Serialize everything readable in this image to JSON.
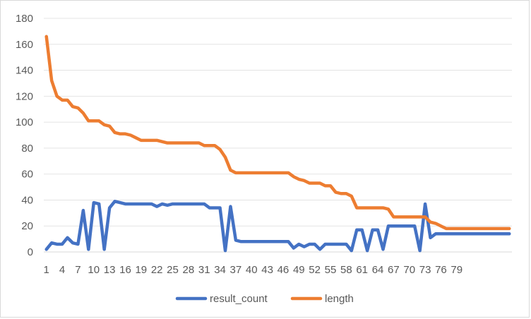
{
  "chart_data": {
    "type": "line",
    "title": "",
    "xlabel": "",
    "ylabel": "",
    "ylim": [
      0,
      180
    ],
    "y_ticks": [
      0,
      20,
      40,
      60,
      80,
      100,
      120,
      140,
      160,
      180
    ],
    "x_tick_labels": [
      "1",
      "4",
      "7",
      "10",
      "13",
      "16",
      "19",
      "22",
      "25",
      "28",
      "31",
      "34",
      "37",
      "40",
      "43",
      "46",
      "49",
      "52",
      "55",
      "58",
      "61",
      "64",
      "67",
      "70",
      "73",
      "76",
      "79"
    ],
    "grid": true,
    "legend_position": "bottom",
    "series": [
      {
        "name": "result_count",
        "color": "#4472c4",
        "values": [
          2,
          7,
          6,
          6,
          11,
          7,
          6,
          32,
          2,
          38,
          37,
          2,
          34,
          39,
          38,
          37,
          37,
          37,
          37,
          37,
          37,
          35,
          37,
          36,
          37,
          37,
          37,
          37,
          37,
          37,
          37,
          34,
          34,
          34,
          1,
          35,
          9,
          8,
          8,
          8,
          8,
          8,
          8,
          8,
          8,
          8,
          8,
          3,
          6,
          4,
          6,
          6,
          2,
          6,
          6,
          6,
          6,
          6,
          1,
          17,
          17,
          1,
          17,
          17,
          2,
          20,
          20,
          20,
          20,
          20,
          20,
          1,
          37,
          11,
          14,
          14,
          14,
          14,
          14,
          14,
          14,
          14,
          14,
          14,
          14,
          14,
          14,
          14,
          14
        ]
      },
      {
        "name": "length",
        "color": "#ed7d31",
        "values": [
          166,
          132,
          120,
          117,
          117,
          112,
          111,
          107,
          101,
          101,
          101,
          98,
          97,
          92,
          91,
          91,
          90,
          88,
          86,
          86,
          86,
          86,
          85,
          84,
          84,
          84,
          84,
          84,
          84,
          84,
          82,
          82,
          82,
          79,
          73,
          63,
          61,
          61,
          61,
          61,
          61,
          61,
          61,
          61,
          61,
          61,
          61,
          58,
          56,
          55,
          53,
          53,
          53,
          51,
          51,
          46,
          45,
          45,
          43,
          34,
          34,
          34,
          34,
          34,
          34,
          33,
          27,
          27,
          27,
          27,
          27,
          27,
          27,
          23,
          22,
          20,
          18,
          18,
          18,
          18,
          18,
          18,
          18,
          18,
          18,
          18,
          18,
          18,
          18
        ]
      }
    ]
  }
}
